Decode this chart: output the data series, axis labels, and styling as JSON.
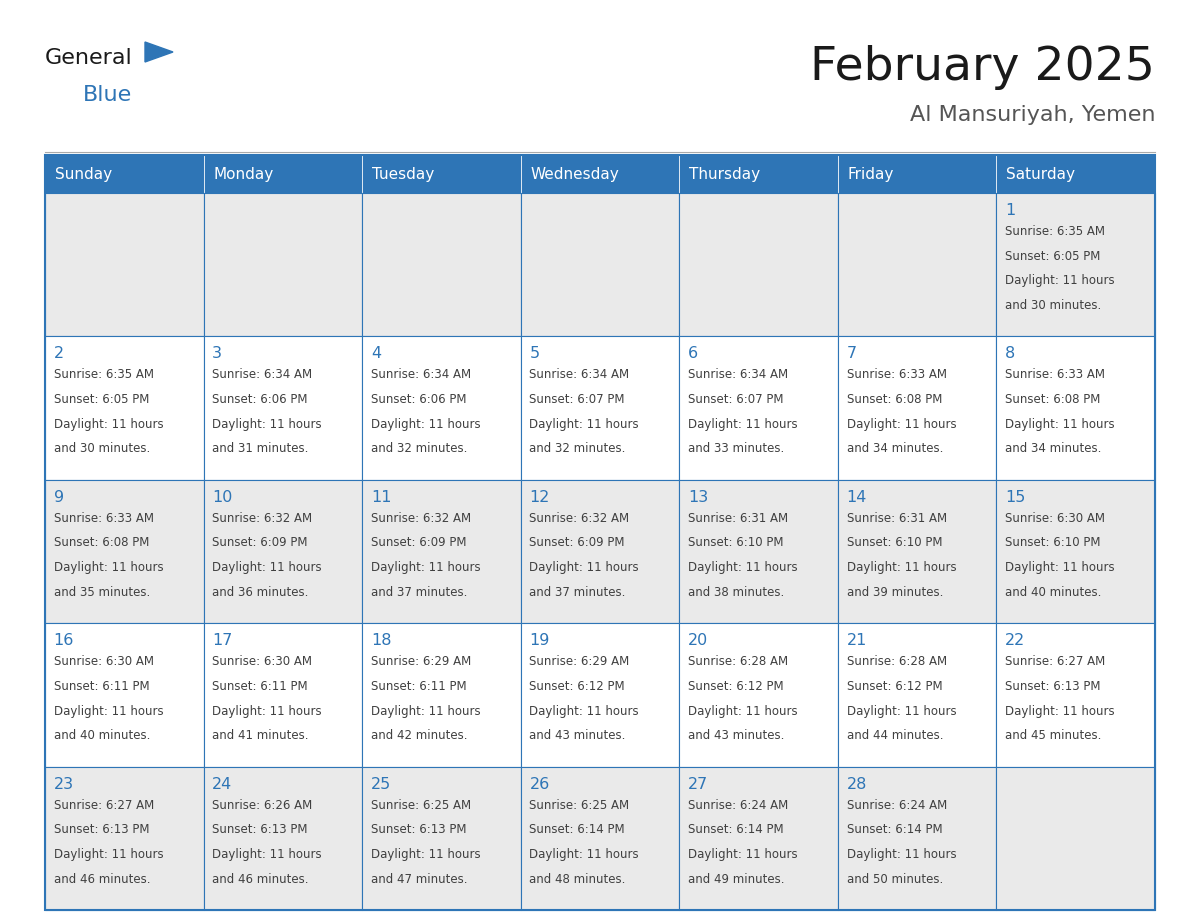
{
  "title": "February 2025",
  "subtitle": "Al Mansuriyah, Yemen",
  "header_bg_color": "#2E75B6",
  "header_text_color": "#FFFFFF",
  "cell_border_color": "#2E75B6",
  "day_number_color": "#2E75B6",
  "info_text_color": "#404040",
  "background_color": "#FFFFFF",
  "cell_bg_odd": "#EAEAEA",
  "cell_bg_even": "#FFFFFF",
  "days_of_week": [
    "Sunday",
    "Monday",
    "Tuesday",
    "Wednesday",
    "Thursday",
    "Friday",
    "Saturday"
  ],
  "calendar_data": [
    [
      null,
      null,
      null,
      null,
      null,
      null,
      {
        "day": 1,
        "sunrise": "6:35 AM",
        "sunset": "6:05 PM",
        "daylight_hours": 11,
        "daylight_minutes": 30
      }
    ],
    [
      {
        "day": 2,
        "sunrise": "6:35 AM",
        "sunset": "6:05 PM",
        "daylight_hours": 11,
        "daylight_minutes": 30
      },
      {
        "day": 3,
        "sunrise": "6:34 AM",
        "sunset": "6:06 PM",
        "daylight_hours": 11,
        "daylight_minutes": 31
      },
      {
        "day": 4,
        "sunrise": "6:34 AM",
        "sunset": "6:06 PM",
        "daylight_hours": 11,
        "daylight_minutes": 32
      },
      {
        "day": 5,
        "sunrise": "6:34 AM",
        "sunset": "6:07 PM",
        "daylight_hours": 11,
        "daylight_minutes": 32
      },
      {
        "day": 6,
        "sunrise": "6:34 AM",
        "sunset": "6:07 PM",
        "daylight_hours": 11,
        "daylight_minutes": 33
      },
      {
        "day": 7,
        "sunrise": "6:33 AM",
        "sunset": "6:08 PM",
        "daylight_hours": 11,
        "daylight_minutes": 34
      },
      {
        "day": 8,
        "sunrise": "6:33 AM",
        "sunset": "6:08 PM",
        "daylight_hours": 11,
        "daylight_minutes": 34
      }
    ],
    [
      {
        "day": 9,
        "sunrise": "6:33 AM",
        "sunset": "6:08 PM",
        "daylight_hours": 11,
        "daylight_minutes": 35
      },
      {
        "day": 10,
        "sunrise": "6:32 AM",
        "sunset": "6:09 PM",
        "daylight_hours": 11,
        "daylight_minutes": 36
      },
      {
        "day": 11,
        "sunrise": "6:32 AM",
        "sunset": "6:09 PM",
        "daylight_hours": 11,
        "daylight_minutes": 37
      },
      {
        "day": 12,
        "sunrise": "6:32 AM",
        "sunset": "6:09 PM",
        "daylight_hours": 11,
        "daylight_minutes": 37
      },
      {
        "day": 13,
        "sunrise": "6:31 AM",
        "sunset": "6:10 PM",
        "daylight_hours": 11,
        "daylight_minutes": 38
      },
      {
        "day": 14,
        "sunrise": "6:31 AM",
        "sunset": "6:10 PM",
        "daylight_hours": 11,
        "daylight_minutes": 39
      },
      {
        "day": 15,
        "sunrise": "6:30 AM",
        "sunset": "6:10 PM",
        "daylight_hours": 11,
        "daylight_minutes": 40
      }
    ],
    [
      {
        "day": 16,
        "sunrise": "6:30 AM",
        "sunset": "6:11 PM",
        "daylight_hours": 11,
        "daylight_minutes": 40
      },
      {
        "day": 17,
        "sunrise": "6:30 AM",
        "sunset": "6:11 PM",
        "daylight_hours": 11,
        "daylight_minutes": 41
      },
      {
        "day": 18,
        "sunrise": "6:29 AM",
        "sunset": "6:11 PM",
        "daylight_hours": 11,
        "daylight_minutes": 42
      },
      {
        "day": 19,
        "sunrise": "6:29 AM",
        "sunset": "6:12 PM",
        "daylight_hours": 11,
        "daylight_minutes": 43
      },
      {
        "day": 20,
        "sunrise": "6:28 AM",
        "sunset": "6:12 PM",
        "daylight_hours": 11,
        "daylight_minutes": 43
      },
      {
        "day": 21,
        "sunrise": "6:28 AM",
        "sunset": "6:12 PM",
        "daylight_hours": 11,
        "daylight_minutes": 44
      },
      {
        "day": 22,
        "sunrise": "6:27 AM",
        "sunset": "6:13 PM",
        "daylight_hours": 11,
        "daylight_minutes": 45
      }
    ],
    [
      {
        "day": 23,
        "sunrise": "6:27 AM",
        "sunset": "6:13 PM",
        "daylight_hours": 11,
        "daylight_minutes": 46
      },
      {
        "day": 24,
        "sunrise": "6:26 AM",
        "sunset": "6:13 PM",
        "daylight_hours": 11,
        "daylight_minutes": 46
      },
      {
        "day": 25,
        "sunrise": "6:25 AM",
        "sunset": "6:13 PM",
        "daylight_hours": 11,
        "daylight_minutes": 47
      },
      {
        "day": 26,
        "sunrise": "6:25 AM",
        "sunset": "6:14 PM",
        "daylight_hours": 11,
        "daylight_minutes": 48
      },
      {
        "day": 27,
        "sunrise": "6:24 AM",
        "sunset": "6:14 PM",
        "daylight_hours": 11,
        "daylight_minutes": 49
      },
      {
        "day": 28,
        "sunrise": "6:24 AM",
        "sunset": "6:14 PM",
        "daylight_hours": 11,
        "daylight_minutes": 50
      },
      null
    ]
  ],
  "logo_text_general": "General",
  "logo_text_blue": "Blue",
  "logo_triangle_color": "#2E75B6",
  "logo_general_color": "#1a1a1a"
}
